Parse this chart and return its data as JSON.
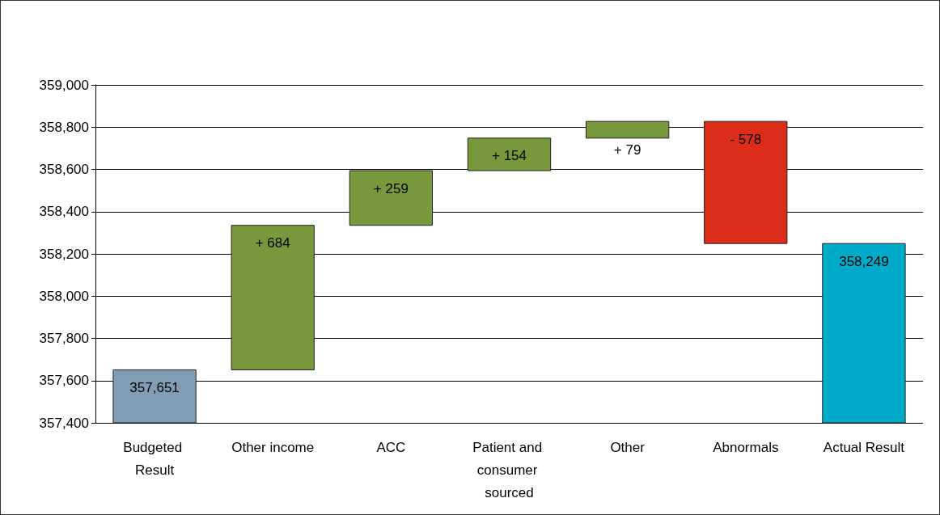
{
  "chart_data": {
    "type": "bar",
    "categories": [
      "Budgeted Result",
      "Other income",
      "ACC",
      "Patient and consumer sourced",
      "Other",
      "Abnormals",
      "Actual Result"
    ],
    "values": [
      357651,
      684,
      259,
      154,
      79,
      -578,
      358249
    ],
    "base": [
      null,
      357651,
      358335,
      358594,
      358748,
      358827,
      null
    ],
    "colors": [
      "#7f9db3",
      "#77983b",
      "#77983b",
      "#77983b",
      "#77983b",
      "#dc2c1a",
      "#00aac9"
    ],
    "value_labels": [
      "357,651",
      "+ 684",
      "+ 259",
      "+ 154",
      "+ 79",
      "- 578",
      "358,249"
    ],
    "ylim": [
      357400,
      359000
    ],
    "yticks": [
      {
        "value": 357400,
        "label": "357,400"
      },
      {
        "value": 357600,
        "label": "357,600"
      },
      {
        "value": 357800,
        "label": "357,800"
      },
      {
        "value": 358000,
        "label": "358,000"
      },
      {
        "value": 358200,
        "label": "358,200"
      },
      {
        "value": 358400,
        "label": "358,400"
      },
      {
        "value": 358600,
        "label": "358,600"
      },
      {
        "value": 358800,
        "label": "358,800"
      },
      {
        "value": 359000,
        "label": "359,000"
      }
    ],
    "grid": "y"
  }
}
